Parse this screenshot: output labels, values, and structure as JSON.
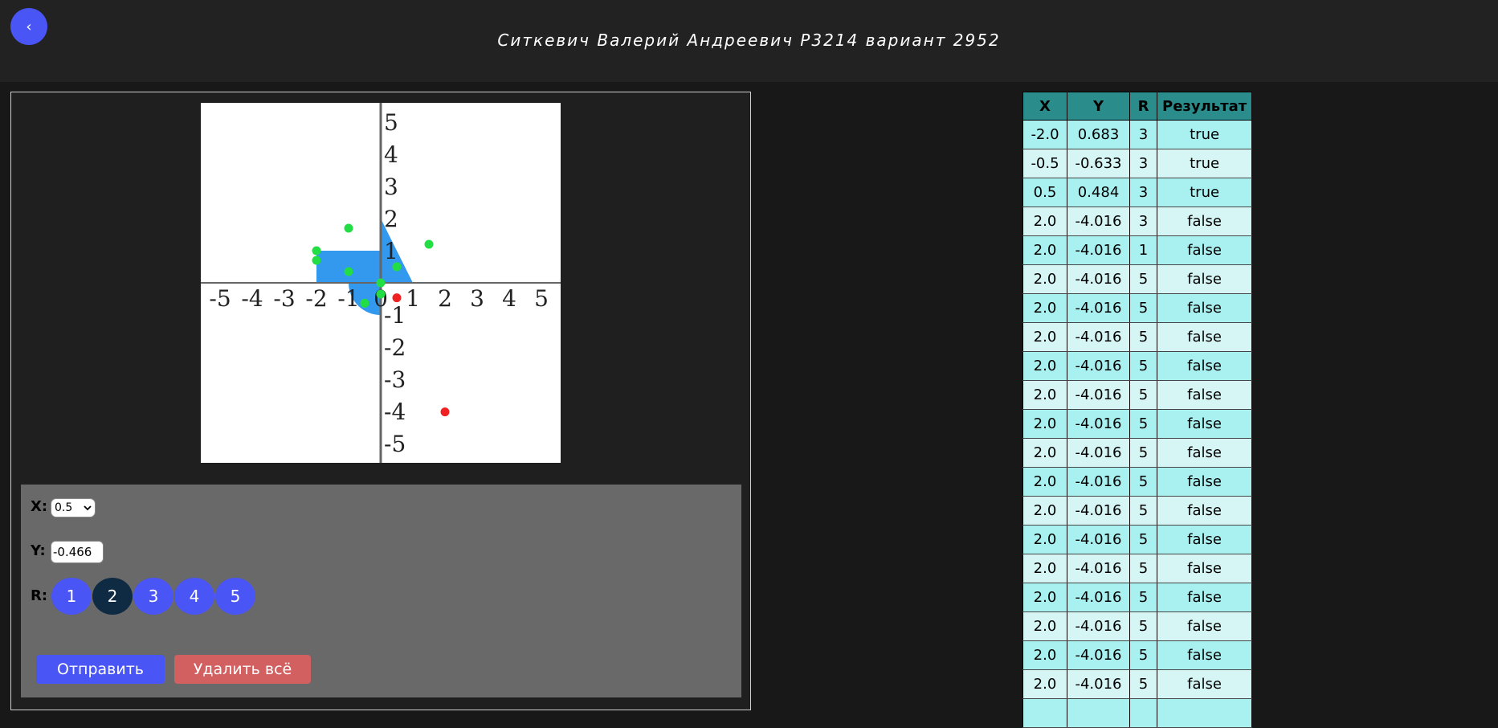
{
  "header": {
    "back_icon": "‹",
    "title": "Ситкевич Валерий Андреевич P3214 вариант 2952"
  },
  "graph": {
    "x_ticks": [
      "-5",
      "-4",
      "-3",
      "-2",
      "-1",
      "0",
      "1",
      "2",
      "3",
      "4",
      "5"
    ],
    "y_ticks": [
      "5",
      "4",
      "3",
      "2",
      "1",
      "-1",
      "-2",
      "-3",
      "-4",
      "-5"
    ],
    "colors": {
      "area": "#3399ee",
      "hit": "#22dd44",
      "miss": "#ee2222"
    },
    "points": [
      {
        "x": -1.0,
        "y": 1.7,
        "hit": true
      },
      {
        "x": 1.5,
        "y": 1.2,
        "hit": true
      },
      {
        "x": -2.0,
        "y": 1.0,
        "hit": true
      },
      {
        "x": -2.0,
        "y": 0.7,
        "hit": true
      },
      {
        "x": -1.0,
        "y": 0.35,
        "hit": true
      },
      {
        "x": 0.5,
        "y": 0.5,
        "hit": true
      },
      {
        "x": 0.0,
        "y": 0.0,
        "hit": true
      },
      {
        "x": 0.0,
        "y": -0.35,
        "hit": true
      },
      {
        "x": -0.5,
        "y": -0.633,
        "hit": true
      },
      {
        "x": 0.5,
        "y": -0.466,
        "hit": false
      },
      {
        "x": 2.0,
        "y": -4.016,
        "hit": false
      }
    ]
  },
  "form": {
    "x_label": "X:",
    "x_value": "0.5",
    "y_label": "Y:",
    "y_value": "-0.466",
    "r_label": "R:",
    "r_buttons": [
      "1",
      "2",
      "3",
      "4",
      "5"
    ],
    "r_active": "2",
    "send_label": "Отправить",
    "clear_label": "Удалить всё"
  },
  "table": {
    "headers": [
      "X",
      "Y",
      "R",
      "Результат"
    ],
    "rows": [
      [
        "-2.0",
        "0.683",
        "3",
        "true"
      ],
      [
        "-0.5",
        "-0.633",
        "3",
        "true"
      ],
      [
        "0.5",
        "0.484",
        "3",
        "true"
      ],
      [
        "2.0",
        "-4.016",
        "3",
        "false"
      ],
      [
        "2.0",
        "-4.016",
        "1",
        "false"
      ],
      [
        "2.0",
        "-4.016",
        "5",
        "false"
      ],
      [
        "2.0",
        "-4.016",
        "5",
        "false"
      ],
      [
        "2.0",
        "-4.016",
        "5",
        "false"
      ],
      [
        "2.0",
        "-4.016",
        "5",
        "false"
      ],
      [
        "2.0",
        "-4.016",
        "5",
        "false"
      ],
      [
        "2.0",
        "-4.016",
        "5",
        "false"
      ],
      [
        "2.0",
        "-4.016",
        "5",
        "false"
      ],
      [
        "2.0",
        "-4.016",
        "5",
        "false"
      ],
      [
        "2.0",
        "-4.016",
        "5",
        "false"
      ],
      [
        "2.0",
        "-4.016",
        "5",
        "false"
      ],
      [
        "2.0",
        "-4.016",
        "5",
        "false"
      ],
      [
        "2.0",
        "-4.016",
        "5",
        "false"
      ],
      [
        "2.0",
        "-4.016",
        "5",
        "false"
      ],
      [
        "2.0",
        "-4.016",
        "5",
        "false"
      ],
      [
        "2.0",
        "-4.016",
        "5",
        "false"
      ],
      [
        "",
        "",
        "",
        ""
      ]
    ]
  }
}
